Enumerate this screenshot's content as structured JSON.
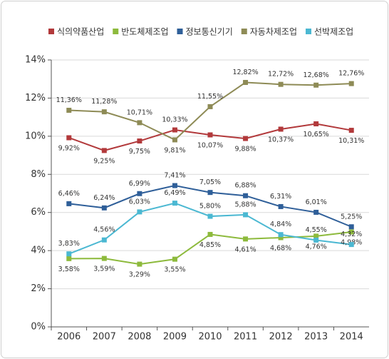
{
  "chart_data": {
    "type": "line",
    "categories": [
      "2006",
      "2007",
      "2008",
      "2009",
      "2010",
      "2011",
      "2012",
      "2013",
      "2014"
    ],
    "series": [
      {
        "name": "식의약품산업",
        "color": "#b2393b",
        "values": [
          9.92,
          9.25,
          9.75,
          10.33,
          10.07,
          9.88,
          10.37,
          10.65,
          10.31
        ],
        "value_labels": [
          "9,92%",
          "9,25%",
          "9,75%",
          "10,33%",
          "10,07%",
          "9,88%",
          "10,37%",
          "10,65%",
          "10,31%"
        ]
      },
      {
        "name": "반도체제조업",
        "color": "#8dba3c",
        "values": [
          3.58,
          3.59,
          3.29,
          3.55,
          4.85,
          4.61,
          4.68,
          4.76,
          4.98
        ],
        "value_labels": [
          "3,58%",
          "3,59%",
          "3,29%",
          "3,55%",
          "4,85%",
          "4,61%",
          "4,68%",
          "4,76%",
          "4,98%"
        ]
      },
      {
        "name": "정보통신기기",
        "color": "#2f5f99",
        "values": [
          6.46,
          6.24,
          6.99,
          7.41,
          7.05,
          6.88,
          6.31,
          6.01,
          5.25
        ],
        "value_labels": [
          "6,46%",
          "6,24%",
          "6,99%",
          "7,41%",
          "7,05%",
          "6,88%",
          "6,31%",
          "6,01%",
          "5,25%"
        ]
      },
      {
        "name": "자동차제조업",
        "color": "#8e8b56",
        "values": [
          11.36,
          11.28,
          10.71,
          9.81,
          11.55,
          12.82,
          12.72,
          12.68,
          12.76
        ],
        "value_labels": [
          "11,36%",
          "11,28%",
          "10,71%",
          "9,81%",
          "11,55%",
          "12,82%",
          "12,72%",
          "12,68%",
          "12,76%"
        ]
      },
      {
        "name": "선박제조업",
        "color": "#4bb8d2",
        "values": [
          3.83,
          4.56,
          6.03,
          6.49,
          5.8,
          5.88,
          4.84,
          4.55,
          4.32
        ],
        "value_labels": [
          "3,83%",
          "4,56%",
          "6,03%",
          "6,49%",
          "5,80%",
          "5,88%",
          "4,84%",
          "4,55%",
          "4,32%"
        ]
      }
    ],
    "ylim": [
      0,
      14
    ],
    "yticks": [
      {
        "value": 0,
        "label": "0%"
      },
      {
        "value": 2,
        "label": "2%"
      },
      {
        "value": 4,
        "label": "4%"
      },
      {
        "value": 6,
        "label": "6%"
      },
      {
        "value": 8,
        "label": "8%"
      },
      {
        "value": 10,
        "label": "10%"
      },
      {
        "value": 12,
        "label": "12%"
      },
      {
        "value": 14,
        "label": "14%"
      }
    ],
    "grid": true,
    "legend": "top"
  }
}
